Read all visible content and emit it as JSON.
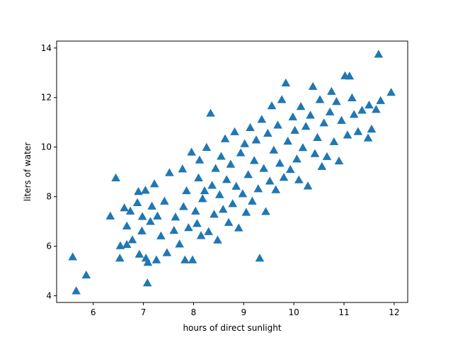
{
  "chart_data": {
    "type": "scatter",
    "xlabel": "hours of direct sunlight",
    "ylabel": "liters of water",
    "xlim": [
      5.27,
      12.27
    ],
    "ylim": [
      3.73,
      14.28
    ],
    "xticks": [
      6,
      7,
      8,
      9,
      10,
      11,
      12
    ],
    "yticks": [
      4,
      6,
      8,
      10,
      12,
      14
    ],
    "marker": "triangle-up",
    "color": "#1f77b4",
    "grid": false,
    "points": [
      [
        5.59,
        5.55
      ],
      [
        5.66,
        4.18
      ],
      [
        5.86,
        4.82
      ],
      [
        6.34,
        7.2
      ],
      [
        6.45,
        8.74
      ],
      [
        6.53,
        5.5
      ],
      [
        6.54,
        6.0
      ],
      [
        6.62,
        7.53
      ],
      [
        6.67,
        6.8
      ],
      [
        6.67,
        6.05
      ],
      [
        6.74,
        7.4
      ],
      [
        6.78,
        6.24
      ],
      [
        6.88,
        7.74
      ],
      [
        6.9,
        8.19
      ],
      [
        6.92,
        5.66
      ],
      [
        6.97,
        6.6
      ],
      [
        6.98,
        7.18
      ],
      [
        7.04,
        8.24
      ],
      [
        7.05,
        5.5
      ],
      [
        7.09,
        5.33
      ],
      [
        7.08,
        4.5
      ],
      [
        7.14,
        6.98
      ],
      [
        7.17,
        7.6
      ],
      [
        7.22,
        8.5
      ],
      [
        7.26,
        5.43
      ],
      [
        7.28,
        7.2
      ],
      [
        7.35,
        6.4
      ],
      [
        7.42,
        7.8
      ],
      [
        7.47,
        5.72
      ],
      [
        7.52,
        8.95
      ],
      [
        7.61,
        6.62
      ],
      [
        7.64,
        7.16
      ],
      [
        7.72,
        6.07
      ],
      [
        7.78,
        9.1
      ],
      [
        7.8,
        7.58
      ],
      [
        7.83,
        5.43
      ],
      [
        7.86,
        8.22
      ],
      [
        7.9,
        6.73
      ],
      [
        7.96,
        9.78
      ],
      [
        7.98,
        5.43
      ],
      [
        8.04,
        7.4
      ],
      [
        8.07,
        6.9
      ],
      [
        8.1,
        8.74
      ],
      [
        8.12,
        9.46
      ],
      [
        8.15,
        6.41
      ],
      [
        8.18,
        7.9
      ],
      [
        8.22,
        8.22
      ],
      [
        8.26,
        9.97
      ],
      [
        8.3,
        6.57
      ],
      [
        8.34,
        11.35
      ],
      [
        8.37,
        8.44
      ],
      [
        8.41,
        7.27
      ],
      [
        8.44,
        9.12
      ],
      [
        8.48,
        6.23
      ],
      [
        8.52,
        8.06
      ],
      [
        8.55,
        9.61
      ],
      [
        8.59,
        7.47
      ],
      [
        8.63,
        10.32
      ],
      [
        8.66,
        8.67
      ],
      [
        8.7,
        6.94
      ],
      [
        8.74,
        9.29
      ],
      [
        8.78,
        7.7
      ],
      [
        8.82,
        10.6
      ],
      [
        8.85,
        8.4
      ],
      [
        8.9,
        6.72
      ],
      [
        8.94,
        9.75
      ],
      [
        8.98,
        8.1
      ],
      [
        9.02,
        10.12
      ],
      [
        9.05,
        7.35
      ],
      [
        9.09,
        8.87
      ],
      [
        9.13,
        10.77
      ],
      [
        9.17,
        7.8
      ],
      [
        9.21,
        9.44
      ],
      [
        9.25,
        10.27
      ],
      [
        9.29,
        8.3
      ],
      [
        9.32,
        5.5
      ],
      [
        9.36,
        11.1
      ],
      [
        9.4,
        9.12
      ],
      [
        9.44,
        7.38
      ],
      [
        9.48,
        10.54
      ],
      [
        9.52,
        8.61
      ],
      [
        9.56,
        11.65
      ],
      [
        9.6,
        9.86
      ],
      [
        9.64,
        8.26
      ],
      [
        9.68,
        10.87
      ],
      [
        9.72,
        9.33
      ],
      [
        9.76,
        11.9
      ],
      [
        9.8,
        8.76
      ],
      [
        9.84,
        12.57
      ],
      [
        9.88,
        10.22
      ],
      [
        9.93,
        9.08
      ],
      [
        9.98,
        11.2
      ],
      [
        10.02,
        10.66
      ],
      [
        10.06,
        9.5
      ],
      [
        10.1,
        8.66
      ],
      [
        10.14,
        11.62
      ],
      [
        10.18,
        9.96
      ],
      [
        10.24,
        10.82
      ],
      [
        10.28,
        8.41
      ],
      [
        10.33,
        11.27
      ],
      [
        10.38,
        12.43
      ],
      [
        10.42,
        9.72
      ],
      [
        10.47,
        10.37
      ],
      [
        10.52,
        11.9
      ],
      [
        10.56,
        9.2
      ],
      [
        10.6,
        10.96
      ],
      [
        10.66,
        9.6
      ],
      [
        10.72,
        11.4
      ],
      [
        10.75,
        12.23
      ],
      [
        10.8,
        10.2
      ],
      [
        10.85,
        11.82
      ],
      [
        10.9,
        9.42
      ],
      [
        10.95,
        11.06
      ],
      [
        11.02,
        12.86
      ],
      [
        11.07,
        10.47
      ],
      [
        11.11,
        12.85
      ],
      [
        11.16,
        11.97
      ],
      [
        11.2,
        11.3
      ],
      [
        11.28,
        10.61
      ],
      [
        11.36,
        11.47
      ],
      [
        11.48,
        10.35
      ],
      [
        11.5,
        11.68
      ],
      [
        11.55,
        10.71
      ],
      [
        11.64,
        11.5
      ],
      [
        11.69,
        13.73
      ],
      [
        11.73,
        11.86
      ],
      [
        11.94,
        12.19
      ]
    ]
  }
}
